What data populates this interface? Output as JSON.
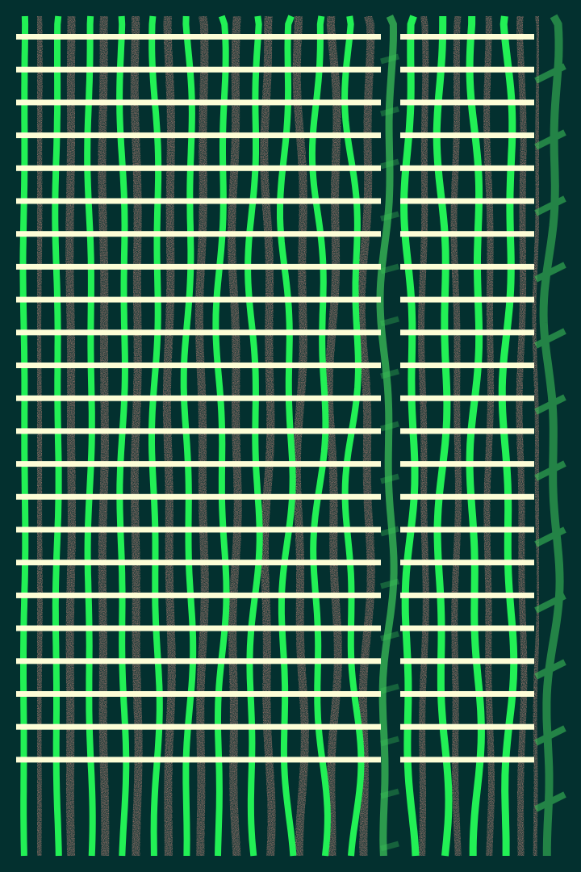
{
  "colors": {
    "background": "#03302f",
    "green": "#22f055",
    "pink": "#e8978a",
    "cream": "#fdfdd6",
    "pale_green": "#3fc85a"
  }
}
